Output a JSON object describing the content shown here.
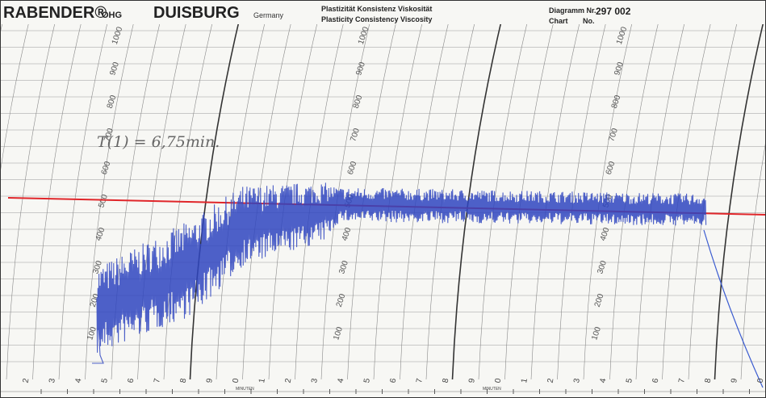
{
  "header": {
    "brand": "RABENDER®",
    "company": "OHG",
    "city": "DUISBURG",
    "country": "Germany",
    "properties_de": "Plastizität Konsistenz Viskosität",
    "properties_en": "Plasticity Consistency Viscosity",
    "diagram_label": "Diagramm Nr.",
    "chart_label": "Chart",
    "no_label": "No.",
    "chart_number": "297 002"
  },
  "note": "T(1) = 6,75min.",
  "scale_labels": [
    100,
    200,
    300,
    400,
    500,
    600,
    700,
    800,
    900,
    1000
  ],
  "minute_labels": [
    2,
    3,
    4,
    5,
    6,
    7,
    8,
    9,
    0,
    1,
    2,
    3,
    4,
    5,
    6,
    7,
    8,
    9,
    0,
    1,
    2,
    3,
    4,
    5,
    6,
    7,
    8,
    9,
    0
  ],
  "minute_caption": "MINUTEN"
}
